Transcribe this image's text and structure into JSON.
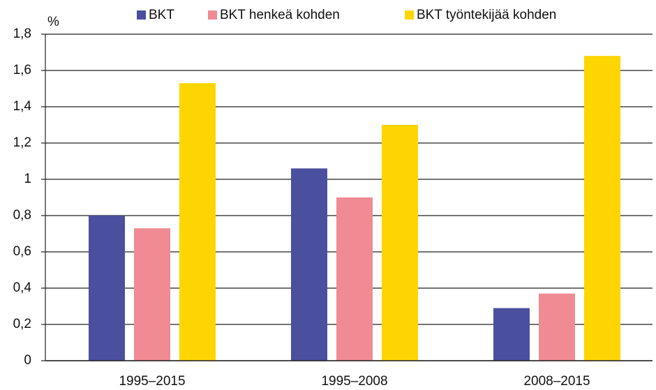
{
  "chart_data": {
    "type": "bar",
    "y_label": "%",
    "categories": [
      "1995–2015",
      "1995–2008",
      "2008–2015"
    ],
    "series": [
      {
        "name": "BKT",
        "color": "#4a4f9e",
        "values": [
          0.8,
          1.06,
          0.29
        ]
      },
      {
        "name": "BKT henkeä kohden",
        "color": "#f08b93",
        "values": [
          0.73,
          0.9,
          0.37
        ]
      },
      {
        "name": "BKT työntekijää kohden",
        "color": "#ffd500",
        "values": [
          1.53,
          1.3,
          1.68
        ]
      }
    ],
    "ylim": [
      0,
      1.8
    ],
    "yticks": [
      0,
      {
        "value": 0.2,
        "label": "0,2"
      },
      {
        "value": 0.4,
        "label": "0,4"
      },
      {
        "value": 0.6,
        "label": "0,6"
      },
      {
        "value": 0.8,
        "label": "0,8"
      },
      1,
      {
        "value": 1.2,
        "label": "1,2"
      },
      {
        "value": 1.4,
        "label": "1,4"
      },
      {
        "value": 1.6,
        "label": "1,6"
      },
      {
        "value": 1.8,
        "label": "1,8"
      }
    ],
    "grid": true,
    "legend": "top"
  }
}
